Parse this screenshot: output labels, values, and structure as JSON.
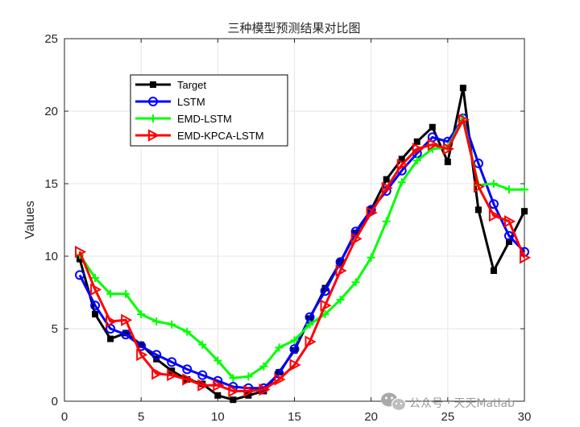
{
  "chart_data": {
    "type": "line",
    "title": "三种模型预测结果对比图",
    "xlabel": "",
    "ylabel": "Values",
    "xlim": [
      0,
      30
    ],
    "ylim": [
      0,
      25
    ],
    "xticks": [
      0,
      5,
      10,
      15,
      20,
      25,
      30
    ],
    "yticks": [
      0,
      5,
      10,
      15,
      20,
      25
    ],
    "grid": true,
    "legend_position": "top-left",
    "x": [
      1,
      2,
      3,
      4,
      5,
      6,
      7,
      8,
      9,
      10,
      11,
      12,
      13,
      14,
      15,
      16,
      17,
      18,
      19,
      20,
      21,
      22,
      23,
      24,
      25,
      26,
      27,
      28,
      29,
      30
    ],
    "series": [
      {
        "name": "Target",
        "color": "#000000",
        "marker": "square",
        "values": [
          9.8,
          6.0,
          4.3,
          4.7,
          3.9,
          2.9,
          2.1,
          1.5,
          1.2,
          0.4,
          0.1,
          0.4,
          0.7,
          2.0,
          3.5,
          5.7,
          7.8,
          9.6,
          11.6,
          13.2,
          15.3,
          16.7,
          17.9,
          18.9,
          16.5,
          21.6,
          13.2,
          9.0,
          11.0,
          13.1
        ]
      },
      {
        "name": "LSTM",
        "color": "#0000ff",
        "marker": "circle",
        "values": [
          8.7,
          6.6,
          5.0,
          4.6,
          3.8,
          3.2,
          2.7,
          2.2,
          1.8,
          1.4,
          1.0,
          0.9,
          0.9,
          1.9,
          3.6,
          5.8,
          7.6,
          9.6,
          11.7,
          13.2,
          14.5,
          15.9,
          17.1,
          18.2,
          17.9,
          19.5,
          16.4,
          13.6,
          11.4,
          10.3
        ]
      },
      {
        "name": "EMD-LSTM",
        "color": "#00ff00",
        "marker": "plus",
        "values": [
          10.1,
          8.5,
          7.4,
          7.4,
          6.0,
          5.5,
          5.3,
          4.8,
          3.9,
          2.8,
          1.6,
          1.7,
          2.4,
          3.7,
          4.2,
          5.3,
          6.0,
          7.0,
          8.2,
          9.9,
          12.4,
          15.1,
          16.6,
          17.4,
          17.5,
          19.5,
          14.9,
          15.0,
          14.6,
          14.6
        ]
      },
      {
        "name": "EMD-KPCA-LSTM",
        "color": "#ff0000",
        "marker": "triangle-right",
        "values": [
          10.3,
          7.7,
          5.5,
          5.6,
          3.2,
          1.9,
          1.8,
          1.5,
          1.1,
          1.1,
          0.7,
          0.7,
          0.8,
          1.5,
          2.5,
          4.1,
          6.6,
          9.0,
          11.2,
          13.0,
          14.7,
          16.3,
          17.4,
          17.7,
          17.4,
          19.4,
          14.8,
          12.8,
          12.4,
          9.9
        ]
      }
    ]
  },
  "watermark": "公众号 · 天天Matlab"
}
